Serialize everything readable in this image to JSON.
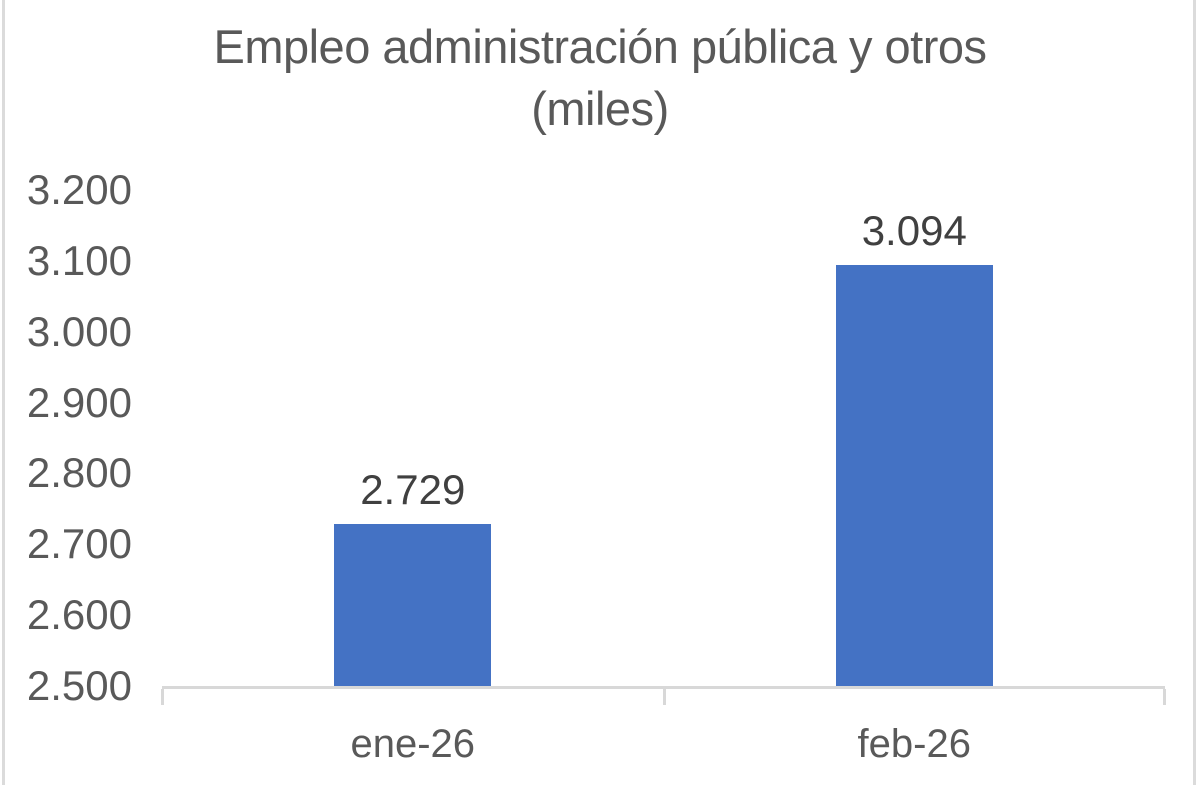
{
  "chart_data": {
    "type": "bar",
    "title_lines": [
      "Empleo administración pública y otros",
      "(miles)"
    ],
    "categories": [
      "ene-26",
      "feb-26"
    ],
    "values": [
      2729,
      3094
    ],
    "value_labels": [
      "2.729",
      "3.094"
    ],
    "ytick_values": [
      3200,
      3100,
      3000,
      2900,
      2800,
      2700,
      2600,
      2500
    ],
    "ytick_labels": [
      "3.200",
      "3.100",
      "3.000",
      "2.900",
      "2.800",
      "2.700",
      "2.600",
      "2.500"
    ],
    "ylim": [
      2500,
      3200
    ],
    "grid": false,
    "legend": false,
    "colors": {
      "bar": "#4472C4",
      "axis": "#D8D8D8",
      "axis_text": "#595959",
      "data_label": "#404040",
      "title_text": "#595959",
      "edge_line": "#DBDBDB"
    }
  }
}
